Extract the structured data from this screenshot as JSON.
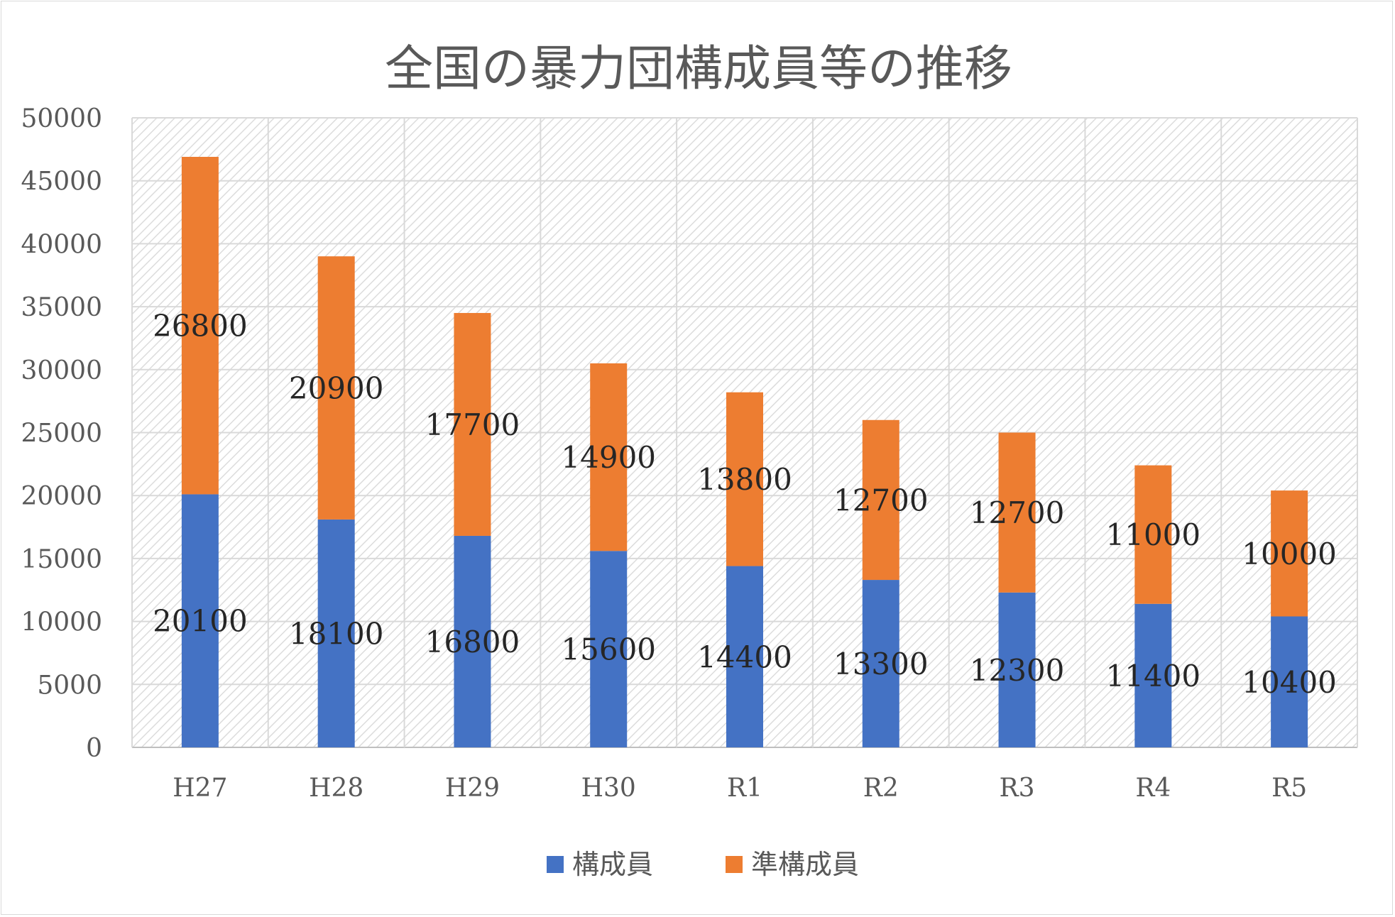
{
  "chart_data": {
    "type": "bar",
    "stacked": true,
    "title": "全国の暴力団構成員等の推移",
    "categories": [
      "H27",
      "H28",
      "H29",
      "H30",
      "R1",
      "R2",
      "R3",
      "R4",
      "R5"
    ],
    "series": [
      {
        "name": "構成員",
        "color": "#4472C4",
        "values": [
          20100,
          18100,
          16800,
          15600,
          14400,
          13300,
          12300,
          11400,
          10400
        ]
      },
      {
        "name": "準構成員",
        "color": "#ED7D31",
        "values": [
          26800,
          20900,
          17700,
          14900,
          13800,
          12700,
          12700,
          11000,
          10000
        ]
      }
    ],
    "ylim": [
      0,
      50000
    ],
    "yticks": [
      0,
      5000,
      10000,
      15000,
      20000,
      25000,
      30000,
      35000,
      40000,
      45000,
      50000
    ],
    "grid": true,
    "legend": "bottom",
    "data_labels": true
  }
}
